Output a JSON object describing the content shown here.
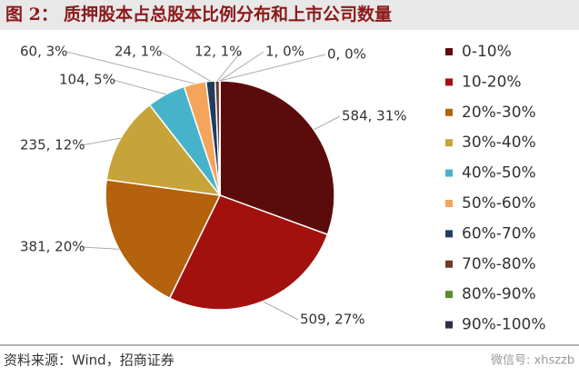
{
  "chart_data": {
    "type": "pie",
    "figure_label": "图 2：",
    "title": "质押股本占总股本比例分布和上市公司数量",
    "categories": [
      "0-10%",
      "10-20%",
      "20%-30%",
      "30%-40%",
      "40%-50%",
      "50%-60%",
      "60%-70%",
      "70%-80%",
      "80%-90%",
      "90%-100%"
    ],
    "values": [
      584,
      509,
      381,
      235,
      104,
      60,
      24,
      12,
      1,
      0
    ],
    "value_labels": [
      "584, 31%",
      "509, 27%",
      "381, 20%",
      "235, 12%",
      "104, 5%",
      "60, 3%",
      "24, 1%",
      "12, 1%",
      "1, 0%",
      "0, 0%"
    ],
    "colors": [
      "#5c0b0b",
      "#a3110f",
      "#b5620c",
      "#c7a43a",
      "#47b3cb",
      "#f5a45c",
      "#1f3d5e",
      "#6e3b2b",
      "#5c8b30",
      "#2f2b4c"
    ],
    "legend": "right",
    "source": "资料来源：Wind，招商证券"
  },
  "watermark": "微信号: xhszzb"
}
